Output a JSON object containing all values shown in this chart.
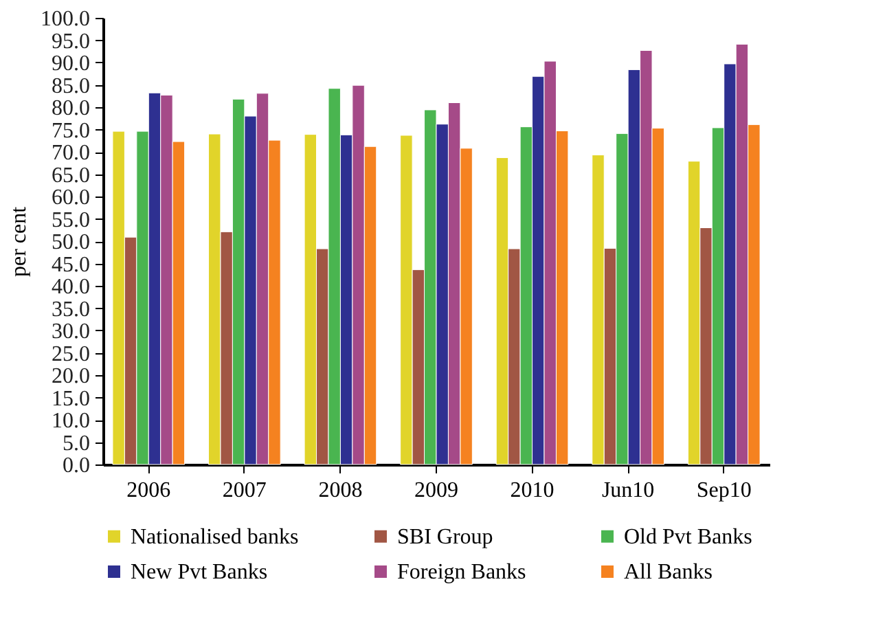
{
  "chart_data": {
    "type": "bar",
    "ylabel": "per cent",
    "categories": [
      "2006",
      "2007",
      "2008",
      "2009",
      "2010",
      "Jun10",
      "Sep10"
    ],
    "series": [
      {
        "name": "Nationalised banks",
        "color": "#e1d42a",
        "values": [
          74.6,
          74.0,
          73.9,
          73.7,
          68.7,
          69.3,
          67.9
        ]
      },
      {
        "name": "SBI  Group",
        "color": "#a15644",
        "values": [
          50.9,
          52.1,
          48.3,
          43.6,
          48.3,
          48.4,
          53.0
        ]
      },
      {
        "name": "Old Pvt Banks",
        "color": "#4ab550",
        "values": [
          74.6,
          81.8,
          84.2,
          79.4,
          75.6,
          74.1,
          75.4
        ]
      },
      {
        "name": "New Pvt Banks",
        "color": "#2e3091",
        "values": [
          83.2,
          78.0,
          73.8,
          76.2,
          86.9,
          88.4,
          89.7
        ]
      },
      {
        "name": "Foreign Banks",
        "color": "#a54a88",
        "values": [
          82.7,
          83.1,
          84.9,
          81.0,
          90.3,
          92.7,
          94.1
        ]
      },
      {
        "name": "All Banks",
        "color": "#f58220",
        "values": [
          72.3,
          72.6,
          71.2,
          70.8,
          74.7,
          75.3,
          76.1
        ]
      }
    ],
    "ylim": [
      0,
      100
    ],
    "yticks": [
      {
        "value": 0,
        "label": "0.0"
      },
      {
        "value": 5,
        "label": "5.0"
      },
      {
        "value": 10,
        "label": "10.0"
      },
      {
        "value": 15,
        "label": "15.0"
      },
      {
        "value": 20,
        "label": "20.0"
      },
      {
        "value": 25,
        "label": "25.0"
      },
      {
        "value": 30,
        "label": "30.0"
      },
      {
        "value": 35,
        "label": "35.0"
      },
      {
        "value": 40,
        "label": "40.0"
      },
      {
        "value": 45,
        "label": "45.0"
      },
      {
        "value": 50,
        "label": "50.0"
      },
      {
        "value": 55,
        "label": "55.0"
      },
      {
        "value": 60,
        "label": "60.0"
      },
      {
        "value": 65,
        "label": "65.0"
      },
      {
        "value": 70,
        "label": "70.0"
      },
      {
        "value": 75,
        "label": "75.0"
      },
      {
        "value": 80,
        "label": "80.0"
      },
      {
        "value": 85,
        "label": "85.0"
      },
      {
        "value": 90,
        "label": "90.0"
      },
      {
        "value": 95,
        "label": "95.0"
      },
      {
        "value": 100,
        "label": "100.0"
      }
    ],
    "grid": false,
    "legend": "bottom"
  }
}
